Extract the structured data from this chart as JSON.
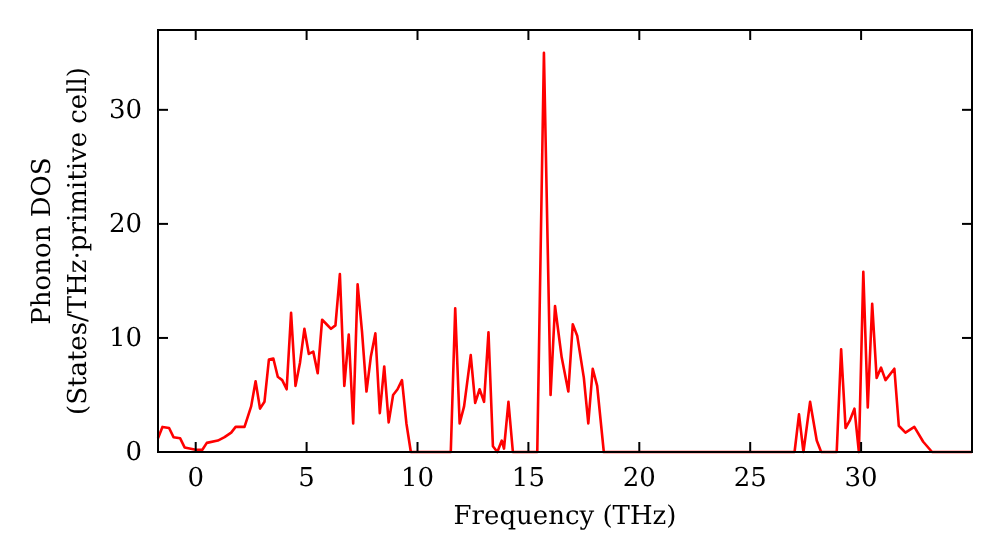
{
  "chart_data": {
    "type": "line",
    "xlabel": "Frequency (THz)",
    "ylabel": "Phonon DOS\n(States/THz·primitive cell)",
    "xlim": [
      -1.7,
      35
    ],
    "ylim": [
      0,
      37
    ],
    "xticks": [
      0,
      5,
      10,
      15,
      20,
      25,
      30
    ],
    "yticks": [
      0,
      10,
      20,
      30
    ],
    "grid": false,
    "marker": "none",
    "line_style": "solid",
    "series": [
      {
        "color": "#ff0000",
        "x": [
          -1.7,
          -1.5,
          -1.2,
          -1.0,
          -0.7,
          -0.5,
          0,
          0.3,
          0.5,
          1,
          1.3,
          1.6,
          1.8,
          2.2,
          2.5,
          2.7,
          2.9,
          3.1,
          3.3,
          3.5,
          3.7,
          3.9,
          4.1,
          4.3,
          4.5,
          4.7,
          4.9,
          5.1,
          5.3,
          5.5,
          5.7,
          5.9,
          6.1,
          6.3,
          6.5,
          6.7,
          6.9,
          7.1,
          7.3,
          7.5,
          7.7,
          7.9,
          8.1,
          8.3,
          8.5,
          8.7,
          8.9,
          9.1,
          9.3,
          9.5,
          9.7,
          11.5,
          11.7,
          11.9,
          12.1,
          12.4,
          12.6,
          12.8,
          13,
          13.2,
          13.4,
          13.6,
          13.8,
          13.9,
          14.1,
          14.3,
          15.4,
          15.7,
          16,
          16.2,
          16.5,
          16.8,
          17,
          17.2,
          17.5,
          17.7,
          17.9,
          18.1,
          18.4,
          27,
          27.2,
          27.4,
          27.7,
          28,
          28.2,
          28.9,
          29.1,
          29.3,
          29.5,
          29.7,
          29.9,
          30.1,
          30.3,
          30.5,
          30.7,
          30.9,
          31.1,
          31.5,
          31.7,
          32,
          32.4,
          32.8,
          33.2,
          35
        ],
        "values": [
          1.2,
          2.2,
          2.1,
          1.3,
          1.2,
          0.4,
          0.2,
          0.2,
          0.8,
          1,
          1.3,
          1.7,
          2.2,
          2.2,
          4,
          6.2,
          3.8,
          4.4,
          8.1,
          8.2,
          6.6,
          6.3,
          5.5,
          12.2,
          5.8,
          7.8,
          10.8,
          8.6,
          8.8,
          6.9,
          11.6,
          11.2,
          10.8,
          11.1,
          15.6,
          5.8,
          10.3,
          2.5,
          14.7,
          10.5,
          5.3,
          8.4,
          10.4,
          3.4,
          7.5,
          2.6,
          5,
          5.5,
          6.3,
          2.5,
          0,
          0,
          12.6,
          2.5,
          4,
          8.5,
          4.3,
          5.5,
          4.4,
          10.5,
          0.5,
          0,
          1,
          0.3,
          4.4,
          0,
          0,
          35,
          5,
          12.8,
          8.3,
          5.3,
          11.2,
          10.2,
          6.5,
          2.5,
          7.3,
          5.8,
          0,
          0,
          3.3,
          0,
          4.4,
          1,
          0,
          0,
          9,
          2.1,
          2.8,
          3.8,
          0,
          15.8,
          3.9,
          13,
          6.5,
          7.4,
          6.3,
          7.3,
          2.3,
          1.7,
          2.2,
          0.9,
          0,
          0
        ]
      }
    ]
  }
}
